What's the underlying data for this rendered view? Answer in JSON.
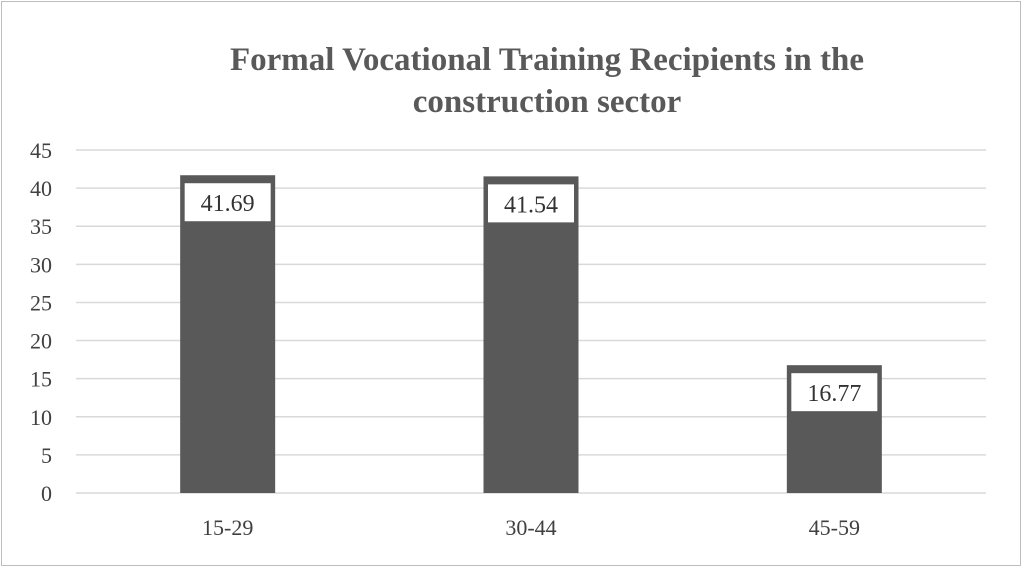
{
  "chart_data": {
    "type": "bar",
    "title_lines": [
      "Formal Vocational Training Recipients in the",
      "construction sector"
    ],
    "categories": [
      "15-29",
      "30-44",
      "45-59"
    ],
    "values": [
      41.69,
      41.54,
      16.77
    ],
    "data_labels": [
      "41.69",
      "41.54",
      "16.77"
    ],
    "xlabel": "",
    "ylabel": "",
    "ylim": [
      0,
      45
    ],
    "yticks": [
      "0",
      "5",
      "10",
      "15",
      "20",
      "25",
      "30",
      "35",
      "40",
      "45"
    ],
    "grid": true,
    "legend": "none",
    "bar_color": "#595959",
    "grid_color": "#d9d9d9",
    "title_color": "#595959"
  }
}
